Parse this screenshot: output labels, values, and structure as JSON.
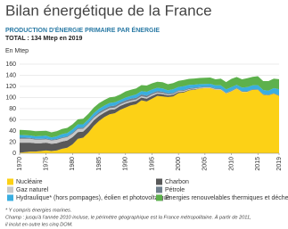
{
  "chart_data": {
    "type": "area",
    "stacked": true,
    "title": "Bilan énergétique de la France",
    "subtitle": "PRODUCTION D'ÉNERGIE PRIMAIRE PAR ÉNERGIE",
    "total_label": "TOTAL : 134 Mtep en 2019",
    "y_label": "En Mtep",
    "x": [
      1970,
      1971,
      1972,
      1973,
      1974,
      1975,
      1976,
      1977,
      1978,
      1979,
      1980,
      1981,
      1982,
      1983,
      1984,
      1985,
      1986,
      1987,
      1988,
      1989,
      1990,
      1991,
      1992,
      1993,
      1994,
      1995,
      1996,
      1997,
      1998,
      1999,
      2000,
      2001,
      2002,
      2003,
      2004,
      2005,
      2006,
      2007,
      2008,
      2009,
      2010,
      2011,
      2012,
      2013,
      2014,
      2015,
      2016,
      2017,
      2018,
      2019
    ],
    "xlim": [
      1970,
      2019
    ],
    "xticks": [
      1970,
      1975,
      1980,
      1985,
      1990,
      1995,
      2000,
      2005,
      2010,
      2015,
      2019
    ],
    "ylim": [
      0,
      160
    ],
    "yticks": [
      0,
      20,
      40,
      60,
      80,
      100,
      120,
      140,
      160
    ],
    "grid": true,
    "series": [
      {
        "name": "Nucléaire",
        "color": "#fcd116",
        "values": [
          1,
          2,
          3,
          3,
          4,
          5,
          4,
          5,
          8,
          10,
          16,
          26,
          28,
          37,
          49,
          58,
          65,
          70,
          72,
          78,
          82,
          86,
          88,
          95,
          93,
          98,
          103,
          102,
          101,
          102,
          108,
          109,
          113,
          114,
          116,
          117,
          117,
          114,
          114,
          107,
          111,
          116,
          110,
          110,
          114,
          114,
          105,
          104,
          107,
          103
        ]
      },
      {
        "name": "Charbon",
        "color": "#595959",
        "values": [
          18,
          17,
          16,
          15,
          14,
          14,
          13,
          13,
          13,
          13,
          13,
          12,
          11,
          11,
          10,
          9,
          8,
          8,
          7,
          7,
          7,
          6,
          6,
          5,
          5,
          5,
          4,
          4,
          3,
          3,
          2,
          1.5,
          1,
          1,
          0.5,
          0.3,
          0.2,
          0.2,
          0.1,
          0.1,
          0.1,
          0,
          0,
          0,
          0,
          0,
          0,
          0,
          0,
          0
        ]
      },
      {
        "name": "Gaz naturel",
        "color": "#c8c8c8",
        "values": [
          7,
          7,
          7,
          6.5,
          6.5,
          6,
          6,
          6,
          6,
          6,
          6,
          5.5,
          5,
          5,
          4.5,
          4,
          3.5,
          3,
          3,
          2.5,
          2.5,
          2.5,
          2.5,
          2.5,
          2.5,
          2.5,
          2,
          2,
          1.5,
          1.5,
          1.5,
          1.5,
          1.2,
          1.2,
          1,
          1,
          1,
          1,
          0.8,
          0.7,
          0.6,
          0.5,
          0.4,
          0.3,
          0.1,
          0,
          0,
          0,
          0,
          0
        ]
      },
      {
        "name": "Pétrole",
        "color": "#6f7f8c",
        "values": [
          2,
          2,
          1.5,
          1.5,
          1.5,
          1.5,
          1.5,
          1.5,
          1.5,
          1.5,
          2,
          2,
          2,
          2,
          2.5,
          3,
          3,
          3.5,
          3.5,
          3.5,
          3.5,
          3.5,
          3,
          3,
          3,
          2.5,
          2.5,
          2.5,
          2,
          2,
          1.5,
          1.5,
          1.5,
          1.5,
          1.2,
          1.2,
          1.2,
          1.2,
          1,
          1,
          1,
          1,
          1,
          1,
          1,
          1,
          1,
          1,
          1,
          1
        ]
      },
      {
        "name": "Hydraulique* (hors pompages), éolien et photovoltaïque",
        "color": "#3aaee0",
        "values": [
          5,
          4.5,
          4.5,
          4.5,
          5,
          5,
          4,
          5,
          6,
          6,
          6,
          6.5,
          6,
          6,
          6,
          6,
          6,
          6,
          6,
          4.5,
          5,
          5,
          6,
          6,
          7,
          6.5,
          6,
          6,
          5.5,
          6.5,
          6,
          7,
          6,
          5.5,
          5.5,
          5,
          5.5,
          5.5,
          6,
          6,
          6,
          5.5,
          6.5,
          7.5,
          7,
          7.5,
          7.5,
          7.5,
          9,
          11
        ]
      },
      {
        "name": "Énergies renouvelables thermiques et déchets",
        "color": "#5db14c",
        "values": [
          9,
          9,
          9,
          9,
          9,
          9,
          9,
          9,
          9,
          9,
          9,
          9,
          10,
          10,
          10,
          10,
          10,
          10,
          10,
          10,
          11,
          11,
          11,
          11,
          11,
          11,
          11,
          11,
          11,
          11,
          11,
          11,
          11,
          11,
          11,
          11,
          11,
          11,
          12,
          13,
          15,
          14,
          15,
          16,
          15,
          16,
          16,
          17,
          17,
          18
        ]
      }
    ],
    "footnotes": [
      "* Y compris énergies marines.",
      "Champ : jusqu'à l'année 2010 incluse, le périmètre géographique est la France métropolitaine. À partir de 2011,",
      "il inclut en outre les cinq DOM."
    ]
  }
}
